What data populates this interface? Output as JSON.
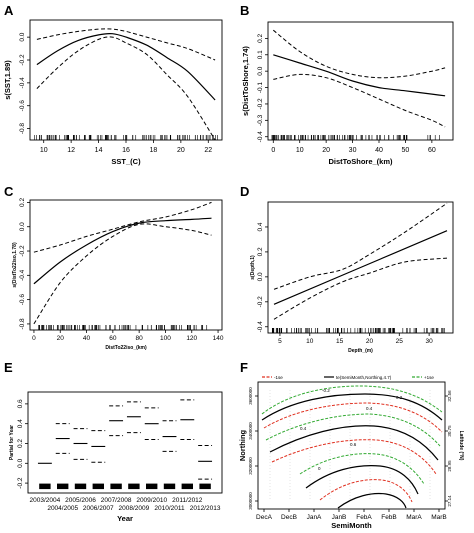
{
  "colors": {
    "ink": "#000000",
    "red_band": "#e03020",
    "green_band": "#33aa33",
    "grey_grid": "#c8c8c8"
  },
  "chart_data": [
    {
      "panel": "A",
      "type": "line",
      "xlabel": "SST_(C)",
      "ylabel": "s(SST,1.89)",
      "xlim": [
        9,
        23
      ],
      "ylim": [
        -0.9,
        0.15
      ],
      "xticks": [
        10,
        12,
        14,
        16,
        18,
        20,
        22
      ],
      "yticks": [
        0.0,
        -0.2,
        -0.4,
        -0.6,
        -0.8
      ],
      "ytick_labels": [
        "0.0",
        "-0.2",
        "-0.4",
        "-0.6",
        "-0.8"
      ],
      "rug": true,
      "series": [
        {
          "role": "fit",
          "x": [
            9.5,
            11,
            12.5,
            14,
            15,
            16,
            17.5,
            19,
            20.5,
            22.5
          ],
          "y": [
            -0.24,
            -0.12,
            -0.03,
            0.02,
            0.03,
            0.0,
            -0.07,
            -0.18,
            -0.3,
            -0.55
          ]
        },
        {
          "role": "upper",
          "x": [
            9.5,
            11,
            12.5,
            14,
            15,
            16,
            17.5,
            19,
            20.5,
            22.5
          ],
          "y": [
            -0.02,
            0.02,
            0.05,
            0.07,
            0.07,
            0.05,
            0.0,
            -0.05,
            -0.1,
            -0.2
          ]
        },
        {
          "role": "lower",
          "x": [
            9.5,
            11,
            12.5,
            14,
            15,
            16,
            17.5,
            19,
            20.5,
            22.5
          ],
          "y": [
            -0.45,
            -0.27,
            -0.12,
            -0.02,
            0.0,
            -0.05,
            -0.15,
            -0.33,
            -0.52,
            -0.9
          ]
        }
      ]
    },
    {
      "panel": "B",
      "type": "line",
      "xlabel": "DistToShore_(km)",
      "ylabel": "s(DistToShore,1.74)",
      "xlim": [
        -2,
        68
      ],
      "ylim": [
        -0.42,
        0.3
      ],
      "xticks": [
        0,
        10,
        20,
        30,
        40,
        50,
        60
      ],
      "yticks": [
        0.2,
        0.1,
        0.0,
        -0.1,
        -0.2,
        -0.3,
        -0.4
      ],
      "ytick_labels": [
        "0.2",
        "0.1",
        "0.0",
        "-0.1",
        "-0.2",
        "-0.3",
        "-0.4"
      ],
      "rug": true,
      "series": [
        {
          "role": "fit",
          "x": [
            0,
            10,
            20,
            30,
            40,
            50,
            60,
            65
          ],
          "y": [
            0.1,
            0.05,
            0.0,
            -0.06,
            -0.1,
            -0.12,
            -0.14,
            -0.15
          ]
        },
        {
          "role": "upper",
          "x": [
            0,
            10,
            20,
            30,
            40,
            50,
            60,
            65
          ],
          "y": [
            0.25,
            0.12,
            0.03,
            -0.02,
            -0.04,
            -0.03,
            0.0,
            0.02
          ]
        },
        {
          "role": "lower",
          "x": [
            0,
            10,
            20,
            30,
            40,
            50,
            60,
            65
          ],
          "y": [
            -0.05,
            -0.02,
            -0.04,
            -0.1,
            -0.17,
            -0.24,
            -0.3,
            -0.34
          ]
        }
      ]
    },
    {
      "panel": "C",
      "type": "line",
      "xlabel": "DistTo22iso_(km)",
      "ylabel": "s(DistTo22iso,1.78)",
      "xlim": [
        -3,
        143
      ],
      "ylim": [
        -0.85,
        0.22
      ],
      "xticks": [
        0,
        20,
        40,
        60,
        80,
        100,
        120,
        140
      ],
      "yticks": [
        0.2,
        0.0,
        -0.2,
        -0.4,
        -0.6,
        -0.8
      ],
      "ytick_labels": [
        "0.2",
        "0.0",
        "-0.2",
        "-0.4",
        "-0.6",
        "-0.8"
      ],
      "rug": true,
      "series": [
        {
          "role": "fit",
          "x": [
            0,
            20,
            40,
            60,
            80,
            100,
            120,
            135
          ],
          "y": [
            -0.47,
            -0.29,
            -0.15,
            -0.04,
            0.03,
            0.05,
            0.06,
            0.07
          ]
        },
        {
          "role": "upper",
          "x": [
            0,
            20,
            40,
            60,
            80,
            100,
            120,
            135
          ],
          "y": [
            -0.21,
            -0.15,
            -0.08,
            -0.02,
            0.04,
            0.08,
            0.14,
            0.2
          ]
        },
        {
          "role": "lower",
          "x": [
            0,
            20,
            40,
            60,
            80,
            100,
            120,
            135
          ],
          "y": [
            -0.8,
            -0.46,
            -0.24,
            -0.08,
            0.02,
            0.0,
            -0.03,
            -0.07
          ]
        }
      ]
    },
    {
      "panel": "D",
      "type": "line",
      "xlabel": "Depth_(m)",
      "ylabel": "s(Depth,1)",
      "xlim": [
        3,
        34
      ],
      "ylim": [
        -0.45,
        0.6
      ],
      "xticks": [
        5,
        10,
        15,
        20,
        25,
        30
      ],
      "yticks": [
        0.4,
        0.2,
        0.0,
        -0.2,
        -0.4
      ],
      "ytick_labels": [
        "0.4",
        "0.2",
        "0.0",
        "-0.2",
        "-0.4"
      ],
      "rug": true,
      "series": [
        {
          "role": "fit",
          "x": [
            4,
            33
          ],
          "y": [
            -0.22,
            0.37
          ]
        },
        {
          "role": "upper",
          "x": [
            4,
            10,
            15.5,
            20,
            26,
            33
          ],
          "y": [
            -0.1,
            0.0,
            0.06,
            0.18,
            0.36,
            0.59
          ]
        },
        {
          "role": "lower",
          "x": [
            4,
            10,
            15.5,
            20,
            26,
            33
          ],
          "y": [
            -0.34,
            -0.17,
            -0.04,
            0.03,
            0.12,
            0.15
          ]
        }
      ]
    },
    {
      "panel": "E",
      "type": "scatter",
      "xlabel": "Year",
      "ylabel": "Partial for Year",
      "ylim": [
        -0.3,
        0.72
      ],
      "yticks": [
        0.6,
        0.4,
        0.2,
        0.0,
        -0.2
      ],
      "ytick_labels": [
        "0.6",
        "0.4",
        "0.2",
        "0.0",
        "-0.2"
      ],
      "categories": [
        "2003/2004",
        "2004/2005",
        "2005/2006",
        "2006/2007",
        "2007/2008",
        "2008/2009",
        "2009/2010",
        "2010/2011",
        "2011/2012",
        "2012/2013"
      ],
      "series": [
        {
          "name": "estimate",
          "values": [
            0.0,
            0.25,
            0.2,
            0.17,
            0.43,
            0.47,
            0.4,
            0.27,
            0.44,
            0.02
          ]
        },
        {
          "name": "upper",
          "values": [
            0.0,
            0.4,
            0.35,
            0.33,
            0.58,
            0.62,
            0.56,
            0.43,
            0.64,
            0.18
          ]
        },
        {
          "name": "lower",
          "values": [
            0.0,
            0.1,
            0.04,
            0.01,
            0.28,
            0.31,
            0.24,
            0.12,
            0.24,
            -0.16
          ]
        }
      ]
    },
    {
      "panel": "F",
      "type": "line",
      "xlabel": "SemiMonth",
      "ylabel": "Northing",
      "y2label": "Latitude (°N)",
      "legend": [
        "-1se",
        "te(SemiMonth,Northing,4.7)",
        "+1se"
      ],
      "legend_position": "top",
      "categories": [
        "DecA",
        "DecB",
        "JanA",
        "JanB",
        "FebA",
        "FebB",
        "MarA",
        "MarB"
      ],
      "yticks": [
        3000000,
        3200000,
        3400000,
        3600000
      ],
      "ytick_labels": [
        "3000000",
        "3200000",
        "3400000",
        "3600000"
      ],
      "y2ticks": [
        "27.14",
        "28.95",
        "30.75",
        "32.56"
      ],
      "contour_labels": [
        "-0.2",
        "0.2",
        "0.4",
        "0.4",
        "0.6",
        "0"
      ]
    }
  ]
}
